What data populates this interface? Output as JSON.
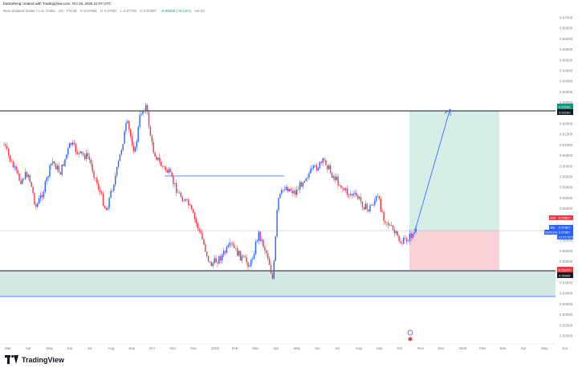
{
  "header": {
    "created_by": "bankofemg created with TradingView.com, Oct 26, 2025 21:07 UTC"
  },
  "symbol": {
    "name": "New Zealand Dollar / U.S. Dollar · 1D · FXCM",
    "open": "O 0.57865",
    "high": "H 0.57867",
    "low": "L 0.57782",
    "close": "C 0.57807",
    "change": "−0.00082 (−0.14%)",
    "volume": "Vol 23"
  },
  "price_axis": {
    "ticks": [
      "0.67000",
      "0.66500",
      "0.66000",
      "0.65500",
      "0.65000",
      "0.64500",
      "0.64000",
      "0.63500",
      "0.63000",
      "0.62500",
      "0.62000",
      "0.61500",
      "0.61000",
      "0.60500",
      "0.60000",
      "0.59500",
      "0.59000",
      "0.58500",
      "0.58000",
      "0.57500",
      "0.57000",
      "0.56500",
      "0.56000",
      "0.55500",
      "0.55000",
      "0.54500",
      "0.54000",
      "0.53500",
      "0.53000",
      "0.52500",
      "0.52000"
    ]
  },
  "tags": {
    "target_label": "0.63180",
    "target_price": "0.63180",
    "ask_label": "Ask",
    "ask_price": "0.57827",
    "bid_label": "Bid",
    "bid_price": "0.57807",
    "last_label": "NZDUSD",
    "last_price": "0.57807",
    "last_time": "1d 02:52:52",
    "stop_price": "0.56079",
    "support_price": "0.55995"
  },
  "time_axis": {
    "labels": [
      "Mar",
      "Apr",
      "May",
      "Jun",
      "Jul",
      "Aug",
      "Sep",
      "Oct",
      "Nov",
      "Dec",
      "2025",
      "Feb",
      "Mar",
      "Apr",
      "May",
      "Jun",
      "Jul",
      "Aug",
      "Sep",
      "Oct",
      "Nov",
      "Dec",
      "2026",
      "Feb",
      "Mar",
      "Apr",
      "May",
      "Jun"
    ]
  },
  "footer": {
    "brand": "TradingView"
  },
  "colors": {
    "up": "#2962ff",
    "down": "#f23645",
    "profit_zone": "#d4ede6",
    "loss_zone": "#f9d1d6",
    "support_zone": "#d3e8e2",
    "arrow": "#2962ff",
    "level_line": "#131722"
  },
  "chart_data": {
    "type": "candlestick",
    "ylim": [
      0.52,
      0.67
    ],
    "levels": {
      "resistance": 0.6318,
      "entry": 0.5781,
      "stop": 0.5608,
      "support_bottom": 0.5532
    }
  }
}
